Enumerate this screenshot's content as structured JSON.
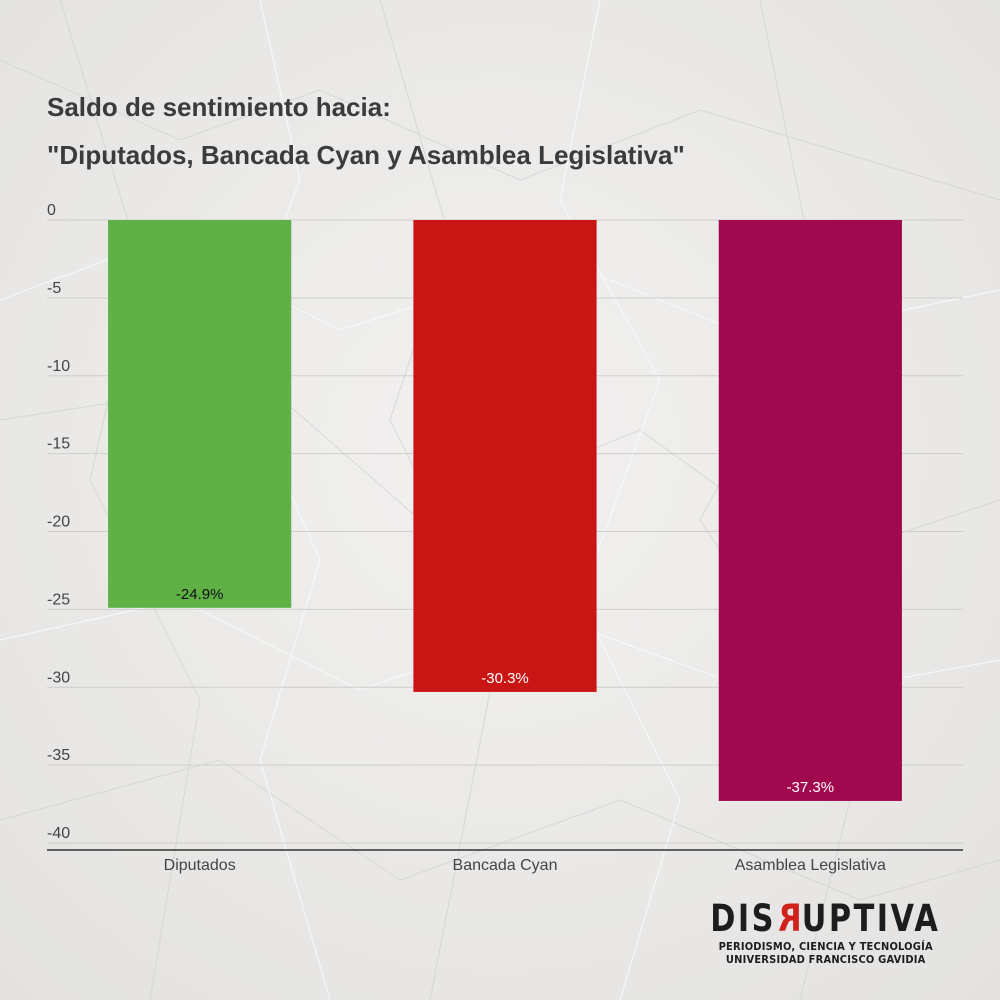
{
  "title": {
    "line1": "Saldo de sentimiento hacia:",
    "line2": "\"Diputados, Bancada Cyan y Asamblea Legislativa\""
  },
  "chart_data": {
    "type": "bar",
    "categories": [
      "Diputados",
      "Bancada Cyan",
      "Asamblea Legislativa"
    ],
    "values": [
      -24.9,
      -30.3,
      -37.3
    ],
    "data_labels": [
      "-24.9%",
      "-30.3%",
      "-37.3%"
    ],
    "colors": [
      "#5fb146",
      "#c91615",
      "#a1094f"
    ],
    "label_colors": [
      "#111111",
      "#ffffff",
      "#ffffff"
    ],
    "ylim": [
      -40,
      0
    ],
    "yticks": [
      0,
      -5,
      -10,
      -15,
      -20,
      -25,
      -30,
      -35,
      -40
    ],
    "grid": true,
    "xlabel": "",
    "ylabel": ""
  },
  "logo": {
    "brand_left": "DIS",
    "brand_r": "R",
    "brand_right": "UPTIVA",
    "line1": "PERIODISMO, CIENCIA Y TECNOLOGÍA",
    "line2": "UNIVERSIDAD FRANCISCO GAVIDIA"
  }
}
